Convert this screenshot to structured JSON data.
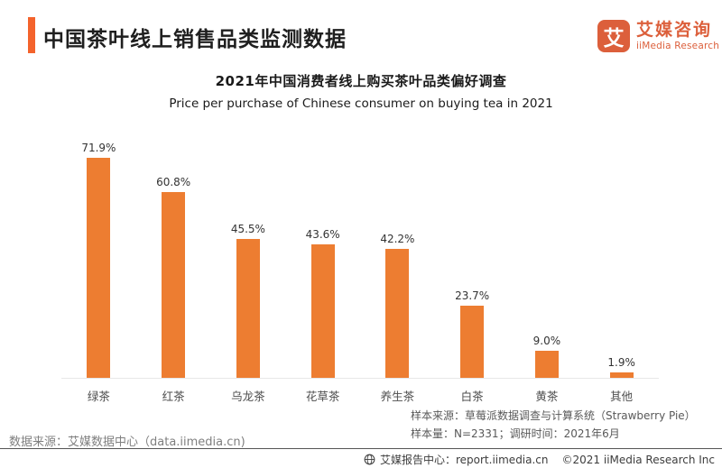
{
  "header": {
    "title": "中国茶叶线上销售品类监测数据",
    "logo": {
      "icon_char": "艾",
      "brand_cn": "艾媒咨询",
      "brand_en": "iiMedia Research"
    }
  },
  "chart_data": {
    "type": "bar",
    "title": "2021年中国消费者线上购买茶叶品类偏好调查",
    "subtitle": "Price per purchase of Chinese consumer on buying tea in 2021",
    "categories": [
      "绿茶",
      "红茶",
      "乌龙茶",
      "花草茶",
      "养生茶",
      "白茶",
      "黄茶",
      "其他"
    ],
    "values": [
      71.9,
      60.8,
      45.5,
      43.6,
      42.2,
      23.7,
      9.0,
      1.9
    ],
    "value_labels": [
      "71.9%",
      "60.8%",
      "45.5%",
      "43.6%",
      "42.2%",
      "23.7%",
      "9.0%",
      "1.9%"
    ],
    "xlabel": "",
    "ylabel": "",
    "ylim": [
      0,
      80
    ],
    "grid": false,
    "legend": "none",
    "bar_color": "#ED7D31"
  },
  "notes": {
    "sample_source": "样本来源：草莓派数据调查与计算系统（Strawberry Pie）",
    "sample_info": "样本量：N=2331；调研时间：2021年6月"
  },
  "source": {
    "data_source": "数据来源：艾媒数据中心（data.iimedia.cn)"
  },
  "footer": {
    "report_center": "艾媒报告中心：report.iimedia.cn",
    "copyright": "©2021  iiMedia Research  Inc"
  },
  "colors": {
    "accent": "#F4632C",
    "logo": "#DC5F3B",
    "bar": "#ED7D31",
    "axis_line": "#E7E7E7"
  }
}
